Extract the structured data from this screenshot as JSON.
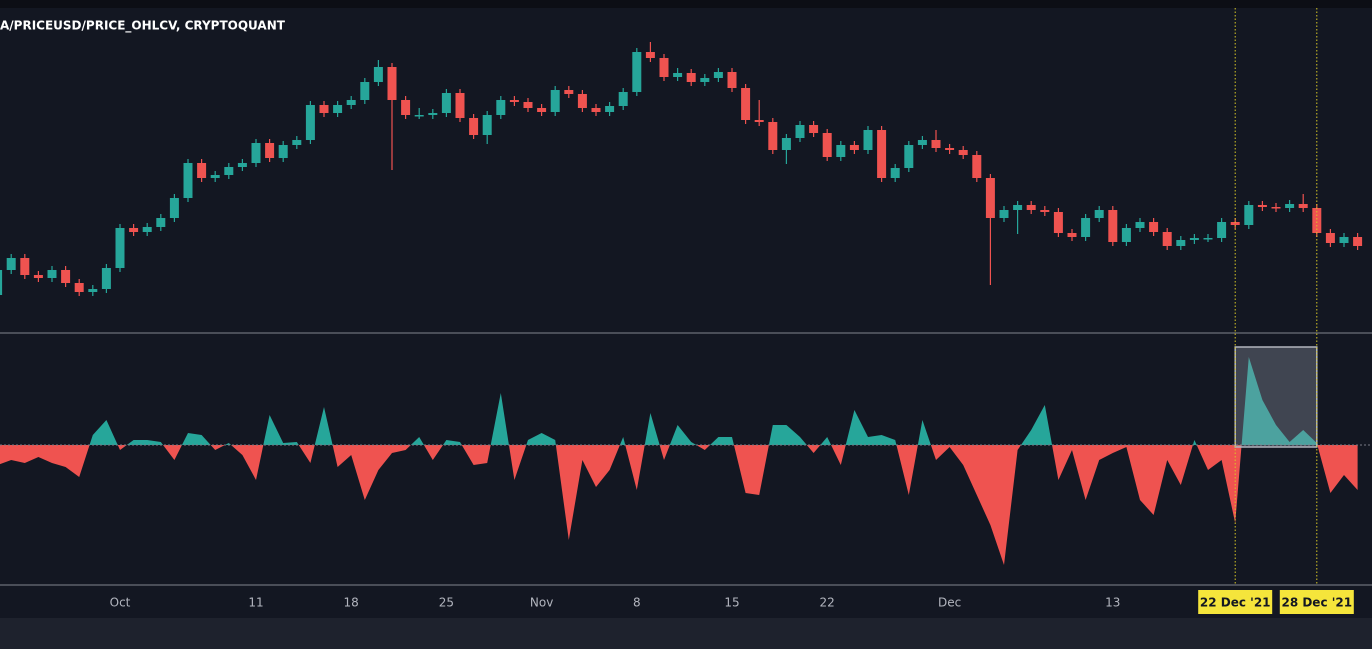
{
  "chart_data": {
    "type": "candlestick",
    "title": "A/PRICEUSD/PRICE_OHLCV, CRYPTOQUANT",
    "categories": [
      null,
      null,
      null,
      null,
      null,
      null,
      null,
      null,
      null,
      "Oct",
      null,
      null,
      null,
      null,
      null,
      null,
      null,
      null,
      null,
      "11",
      null,
      null,
      null,
      null,
      null,
      null,
      "18",
      null,
      null,
      null,
      null,
      null,
      null,
      "25",
      null,
      null,
      null,
      null,
      null,
      null,
      "Nov",
      null,
      null,
      null,
      null,
      null,
      null,
      "8",
      null,
      null,
      null,
      null,
      null,
      null,
      "15",
      null,
      null,
      null,
      null,
      null,
      null,
      "22",
      null,
      null,
      null,
      null,
      null,
      null,
      null,
      null,
      "Dec",
      null,
      null,
      null,
      null,
      null,
      null,
      null,
      null,
      null,
      null,
      null,
      "13",
      null,
      null,
      null,
      null,
      null,
      null,
      null,
      null,
      "22 Dec '21",
      null,
      null,
      null,
      null,
      null,
      "28 Dec '21",
      null,
      null,
      null
    ],
    "open": [
      35,
      60,
      72,
      55,
      52,
      60,
      47,
      38,
      41,
      62,
      102,
      98,
      103,
      112,
      132,
      167,
      152,
      155,
      163,
      167,
      187,
      172,
      185,
      190,
      225,
      217,
      225,
      230,
      248,
      263,
      230,
      215,
      215,
      217,
      237,
      212,
      195,
      215,
      230,
      228,
      222,
      218,
      240,
      236,
      222,
      218,
      224,
      238,
      278,
      272,
      253,
      257,
      248,
      252,
      258,
      242,
      210,
      208,
      180,
      192,
      205,
      197,
      173,
      185,
      180,
      200,
      152,
      162,
      185,
      190,
      182,
      180,
      175,
      152,
      112,
      120,
      125,
      120,
      118,
      97,
      93,
      112,
      120,
      88,
      102,
      108,
      98,
      84,
      90,
      92,
      92,
      108,
      105,
      125,
      123,
      122,
      126,
      122,
      97,
      87,
      93
    ],
    "high": [
      64,
      76,
      76,
      59,
      64,
      64,
      51,
      45,
      66,
      106,
      106,
      107,
      116,
      136,
      171,
      171,
      159,
      167,
      171,
      191,
      191,
      189,
      194,
      229,
      229,
      229,
      234,
      252,
      270,
      267,
      234,
      222,
      221,
      241,
      241,
      216,
      219,
      234,
      234,
      232,
      226,
      244,
      244,
      240,
      226,
      228,
      242,
      282,
      288,
      276,
      262,
      261,
      256,
      262,
      262,
      246,
      230,
      212,
      196,
      209,
      209,
      201,
      189,
      189,
      204,
      204,
      166,
      189,
      194,
      200,
      186,
      184,
      179,
      156,
      124,
      129,
      129,
      124,
      122,
      101,
      116,
      124,
      124,
      106,
      112,
      112,
      102,
      94,
      96,
      96,
      112,
      112,
      129,
      129,
      127,
      130,
      136,
      126,
      101,
      97,
      97
    ],
    "low": [
      31,
      56,
      51,
      48,
      48,
      43,
      34,
      34,
      37,
      58,
      94,
      94,
      99,
      108,
      128,
      148,
      148,
      151,
      159,
      163,
      168,
      168,
      181,
      186,
      213,
      213,
      221,
      226,
      244,
      160,
      211,
      211,
      211,
      213,
      208,
      191,
      186,
      211,
      224,
      218,
      214,
      214,
      232,
      218,
      214,
      214,
      220,
      234,
      268,
      249,
      249,
      244,
      244,
      248,
      238,
      206,
      204,
      176,
      166,
      188,
      193,
      169,
      169,
      176,
      176,
      148,
      148,
      158,
      181,
      178,
      176,
      171,
      148,
      45,
      108,
      96,
      116,
      114,
      93,
      89,
      89,
      108,
      84,
      84,
      98,
      94,
      80,
      80,
      86,
      88,
      88,
      101,
      101,
      119,
      118,
      118,
      118,
      93,
      83,
      83,
      80
    ],
    "close": [
      60,
      72,
      55,
      52,
      60,
      47,
      38,
      41,
      62,
      102,
      98,
      103,
      112,
      132,
      167,
      152,
      155,
      163,
      167,
      187,
      172,
      185,
      190,
      225,
      217,
      225,
      230,
      248,
      263,
      230,
      215,
      215,
      217,
      237,
      212,
      195,
      215,
      230,
      228,
      222,
      218,
      240,
      236,
      222,
      218,
      224,
      238,
      278,
      272,
      253,
      257,
      248,
      252,
      258,
      242,
      210,
      208,
      180,
      192,
      205,
      197,
      173,
      185,
      180,
      200,
      152,
      162,
      185,
      190,
      182,
      180,
      175,
      152,
      112,
      120,
      125,
      120,
      118,
      97,
      93,
      112,
      120,
      88,
      102,
      108,
      98,
      84,
      90,
      92,
      92,
      108,
      105,
      125,
      123,
      122,
      126,
      122,
      97,
      87,
      93,
      84
    ],
    "up_color": "#26a69a",
    "down_color": "#ef5350",
    "ylim": [
      0,
      320
    ],
    "indicator": {
      "type": "area",
      "values": [
        -20,
        -15,
        -18,
        -12,
        -18,
        -22,
        -32,
        10,
        25,
        -5,
        5,
        5,
        3,
        -15,
        12,
        10,
        -5,
        2,
        -10,
        -35,
        30,
        2,
        3,
        -18,
        38,
        -22,
        -10,
        -55,
        -25,
        -8,
        -5,
        8,
        -15,
        5,
        3,
        -20,
        -18,
        52,
        -35,
        5,
        12,
        5,
        -95,
        -15,
        -42,
        -25,
        8,
        -45,
        32,
        -15,
        20,
        3,
        -5,
        8,
        8,
        -48,
        -50,
        20,
        20,
        8,
        -8,
        8,
        -20,
        35,
        8,
        10,
        5,
        -50,
        25,
        -15,
        -2,
        -20,
        -50,
        -80,
        -120,
        -5,
        15,
        40,
        -35,
        -5,
        -55,
        -15,
        -8,
        -2,
        -55,
        -70,
        -15,
        -40,
        5,
        -25,
        -15,
        -78,
        88,
        45,
        20,
        3,
        15,
        2,
        -48,
        -30,
        -45
      ],
      "ylim": [
        -140,
        110
      ],
      "positive_color": "#26a69a",
      "negative_color": "#ef5350"
    },
    "highlight_range": [
      91,
      97
    ]
  }
}
